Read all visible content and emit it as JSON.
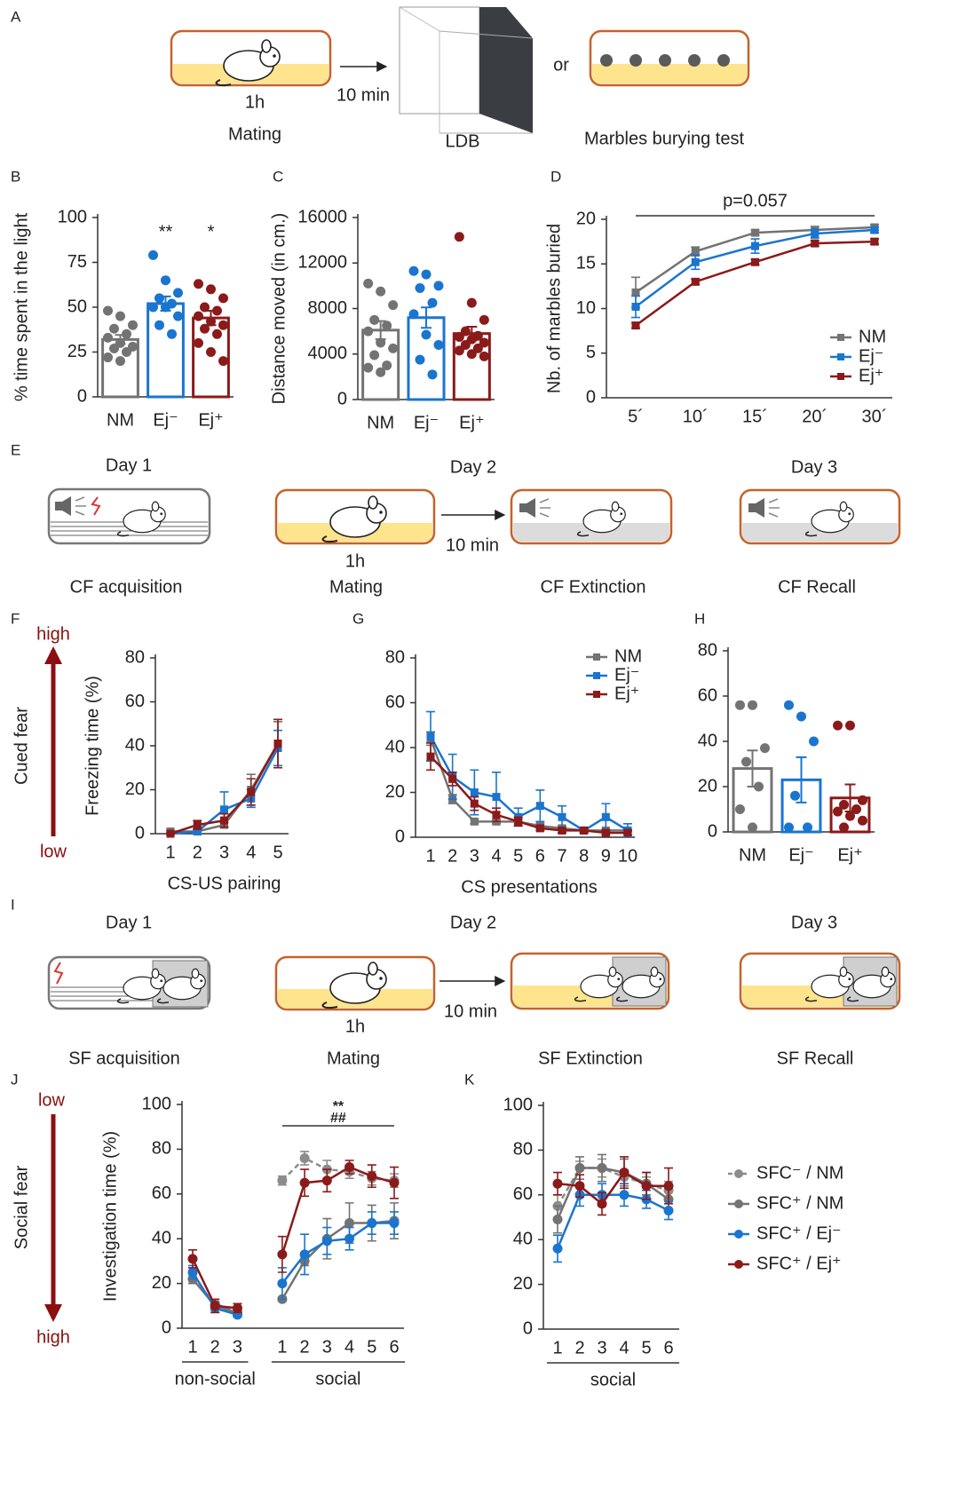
{
  "panel_letters": [
    "A",
    "B",
    "C",
    "D",
    "E",
    "F",
    "G",
    "H",
    "I",
    "J",
    "K"
  ],
  "schematic_A": {
    "duration": "1h",
    "delay": "10 min",
    "or": "or",
    "labels": [
      "Mating",
      "LDB",
      "Marbles burying test"
    ]
  },
  "schematic_E": {
    "days": [
      "Day 1",
      "Day 2",
      "Day 3"
    ],
    "duration": "1h",
    "delay": "10 min",
    "labels": [
      "CF acquisition",
      "Mating",
      "CF Extinction",
      "CF Recall"
    ]
  },
  "schematic_I": {
    "days": [
      "Day 1",
      "Day 2",
      "Day 3"
    ],
    "duration": "1h",
    "delay": "10 min",
    "labels": [
      "SF acquisition",
      "Mating",
      "SF Extinction",
      "SF Recall"
    ]
  },
  "side_scales": [
    {
      "top": "high",
      "label": "Cued fear",
      "bottom": "low"
    },
    {
      "top": "low",
      "label": "Social fear",
      "bottom": "high"
    }
  ],
  "chart_data": [
    {
      "type": "bar",
      "ylabel": "% time spent in the light",
      "categories": [
        "NM",
        "Ej⁻",
        "Ej⁺"
      ],
      "values": [
        32,
        52,
        44
      ],
      "errors": [
        2.5,
        4,
        4
      ],
      "colors": [
        "#737373",
        "#1a75cf",
        "#8b1a1a"
      ],
      "points": [
        [
          48,
          45,
          40,
          38,
          35,
          33,
          30,
          28,
          27,
          25,
          22,
          20
        ],
        [
          79,
          65,
          58,
          55,
          52,
          50,
          50,
          45,
          40,
          35
        ],
        [
          63,
          60,
          55,
          50,
          48,
          45,
          42,
          40,
          38,
          35,
          30,
          25,
          20
        ]
      ],
      "sig_labels": [
        null,
        "**",
        "*"
      ],
      "ylim": [
        0,
        100
      ],
      "yticks": [
        0,
        25,
        50,
        75,
        100
      ]
    },
    {
      "type": "bar",
      "ylabel": "Distance moved (in cm.)",
      "categories": [
        "NM",
        "Ej⁻",
        "Ej⁺"
      ],
      "values": [
        6100,
        7200,
        5800
      ],
      "errors": [
        800,
        900,
        600
      ],
      "colors": [
        "#737373",
        "#1a75cf",
        "#8b1a1a"
      ],
      "points": [
        [
          10200,
          9500,
          8300,
          7000,
          6500,
          6000,
          5000,
          4500,
          3900,
          3000,
          2800,
          2400
        ],
        [
          11300,
          11000,
          10000,
          9800,
          8500,
          7500,
          5700,
          4800,
          3500,
          2200
        ],
        [
          14300,
          8500,
          7000,
          6000,
          5600,
          5500,
          5300,
          5000,
          4800,
          4500,
          4300,
          4000,
          3800
        ]
      ],
      "ylim": [
        0,
        16000
      ],
      "yticks": [
        0,
        4000,
        8000,
        12000,
        16000
      ]
    },
    {
      "type": "line",
      "ylabel": "Nb. of marbles buried",
      "categories": [
        "5´",
        "10´",
        "15´",
        "20´",
        "30´"
      ],
      "marker": "square",
      "series": [
        {
          "name": "NM",
          "color": "#737373",
          "values": [
            11.8,
            16.4,
            18.5,
            18.8,
            19.1
          ],
          "errors": [
            1.7,
            0.5,
            0.3,
            0.4,
            0.3
          ]
        },
        {
          "name": "Ej⁻",
          "color": "#1a75cf",
          "values": [
            10.2,
            15.2,
            17.0,
            18.4,
            18.8
          ],
          "errors": [
            1.2,
            0.8,
            0.8,
            0.5,
            0.3
          ]
        },
        {
          "name": "Ej⁺",
          "color": "#8b1a1a",
          "values": [
            8.1,
            13.0,
            15.2,
            17.3,
            17.5
          ],
          "errors": [
            0.3,
            0.3,
            0.3,
            0.3,
            0.3
          ]
        }
      ],
      "annotation": "p=0.057",
      "legend": "lower right",
      "ylim": [
        0,
        20
      ],
      "yticks": [
        0,
        5,
        10,
        15,
        20
      ]
    },
    {
      "type": "line",
      "ylabel": "Freezing time (%)",
      "xlabel": "CS-US pairing",
      "categories": [
        "1",
        "2",
        "3",
        "4",
        "5"
      ],
      "marker": "square",
      "series": [
        {
          "name": "NM",
          "color": "#737373",
          "values": [
            1,
            1,
            4,
            20,
            41
          ],
          "errors": [
            0.5,
            1,
            1,
            7,
            10
          ]
        },
        {
          "name": "Ej⁻",
          "color": "#1a75cf",
          "values": [
            0,
            1,
            11,
            16,
            39
          ],
          "errors": [
            0.3,
            1,
            8,
            4,
            8
          ]
        },
        {
          "name": "Ej⁺",
          "color": "#8b1a1a",
          "values": [
            0,
            4,
            6,
            19,
            41
          ],
          "errors": [
            0.3,
            2,
            3,
            6,
            11
          ]
        }
      ],
      "ylim": [
        0,
        80
      ],
      "yticks": [
        0,
        20,
        40,
        60,
        80
      ]
    },
    {
      "type": "line",
      "xlabel": "CS presentations",
      "categories": [
        "1",
        "2",
        "3",
        "4",
        "5",
        "6",
        "7",
        "8",
        "9",
        "10"
      ],
      "marker": "square",
      "series": [
        {
          "name": "NM",
          "color": "#737373",
          "values": [
            44,
            17,
            7,
            7,
            7,
            5,
            4,
            3,
            3,
            3
          ],
          "errors": [
            3,
            2,
            1,
            1,
            1,
            1,
            1,
            0.5,
            0.5,
            0.5
          ]
        },
        {
          "name": "Ej⁻",
          "color": "#1a75cf",
          "values": [
            45,
            27,
            20,
            18,
            9,
            14,
            9,
            3,
            9,
            3
          ],
          "errors": [
            11,
            10,
            10,
            11,
            4,
            7,
            5,
            1,
            6,
            3
          ]
        },
        {
          "name": "Ej⁺",
          "color": "#8b1a1a",
          "values": [
            36,
            26,
            15,
            10,
            7,
            4,
            3,
            3,
            2,
            2
          ],
          "errors": [
            6,
            3,
            3,
            3,
            2,
            1,
            1,
            1,
            1,
            1
          ]
        }
      ],
      "legend": "upper right",
      "ylim": [
        0,
        80
      ],
      "yticks": [
        0,
        20,
        40,
        60,
        80
      ]
    },
    {
      "type": "bar",
      "categories": [
        "NM",
        "Ej⁻",
        "Ej⁺"
      ],
      "values": [
        28,
        23,
        15
      ],
      "errors": [
        8,
        10,
        6
      ],
      "colors": [
        "#737373",
        "#1a75cf",
        "#8b1a1a"
      ],
      "points": [
        [
          56,
          56,
          37,
          31,
          20,
          10,
          2
        ],
        [
          56,
          51,
          40,
          16,
          2,
          2
        ],
        [
          47,
          47,
          14,
          12,
          10,
          9,
          7,
          5,
          2
        ]
      ],
      "ylim": [
        0,
        80
      ],
      "yticks": [
        0,
        20,
        40,
        60,
        80
      ]
    },
    {
      "type": "line",
      "ylabel": "Investigation time (%)",
      "categories": [
        "1",
        "2",
        "3",
        null,
        "1",
        "2",
        "3",
        "4",
        "5",
        "6"
      ],
      "marker": "circle",
      "xgroups": [
        "non-social",
        "social"
      ],
      "annotations": [
        "**",
        "##"
      ],
      "series": [
        {
          "name": "SFC⁻ / NM",
          "color": "#8c8c8c",
          "linestyle": "dashed",
          "values": [
            22,
            11,
            7,
            null,
            66,
            76,
            71,
            70,
            67,
            66
          ],
          "errors": [
            2,
            2,
            1,
            null,
            2,
            3,
            4,
            3,
            3,
            3
          ]
        },
        {
          "name": "SFC⁺ / NM",
          "color": "#737373",
          "values": [
            22,
            10,
            7,
            null,
            13,
            30,
            40,
            47,
            47,
            48
          ],
          "errors": [
            2,
            2,
            1,
            null,
            1,
            2,
            9,
            9,
            8,
            8
          ]
        },
        {
          "name": "SFC⁺ / Ej⁻",
          "color": "#1a75cf",
          "values": [
            25,
            9,
            6,
            null,
            20,
            33,
            39,
            40,
            47,
            47
          ],
          "errors": [
            3,
            2,
            1,
            null,
            7,
            9,
            6,
            5,
            5,
            5
          ]
        },
        {
          "name": "SFC⁺ / Ej⁺",
          "color": "#8b1a1a",
          "values": [
            31,
            10,
            9,
            null,
            33,
            65,
            66,
            72,
            68,
            65
          ],
          "errors": [
            4,
            3,
            2,
            null,
            8,
            6,
            5,
            3,
            5,
            7
          ]
        }
      ],
      "ylim": [
        0,
        100
      ],
      "yticks": [
        0,
        20,
        40,
        60,
        80,
        100
      ]
    },
    {
      "type": "line",
      "categories": [
        "1",
        "2",
        "3",
        "4",
        "5",
        "6"
      ],
      "marker": "circle",
      "xgroups": [
        "social"
      ],
      "series": [
        {
          "name": "SFC⁻ / NM",
          "color": "#8c8c8c",
          "linestyle": "dashed",
          "values": [
            55,
            72,
            72,
            68,
            65,
            62
          ],
          "errors": [
            5,
            3,
            4,
            3,
            3,
            4
          ]
        },
        {
          "name": "SFC⁺ / NM",
          "color": "#737373",
          "values": [
            49,
            72,
            72,
            70,
            65,
            58
          ],
          "errors": [
            6,
            5,
            6,
            6,
            5,
            5
          ]
        },
        {
          "name": "SFC⁺ / Ej⁻",
          "color": "#1a75cf",
          "values": [
            36,
            60,
            60,
            60,
            58,
            53
          ],
          "errors": [
            6,
            5,
            5,
            5,
            4,
            4
          ]
        },
        {
          "name": "SFC⁺ / Ej⁺",
          "color": "#8b1a1a",
          "values": [
            65,
            64,
            56,
            70,
            64,
            64
          ],
          "errors": [
            5,
            5,
            5,
            7,
            6,
            8
          ]
        }
      ],
      "legend": "right",
      "ylim": [
        0,
        100
      ],
      "yticks": [
        0,
        20,
        40,
        60,
        80,
        100
      ]
    }
  ]
}
